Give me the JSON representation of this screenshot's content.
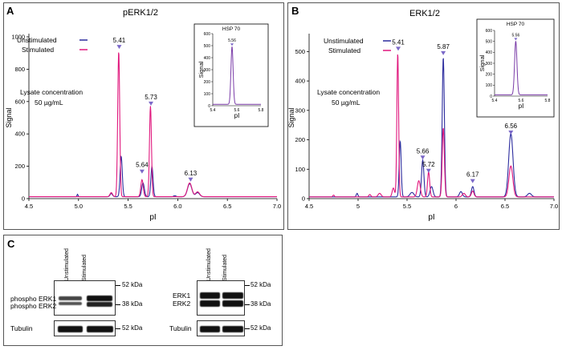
{
  "colors": {
    "unstimulated": "#2c2c9e",
    "stimulated": "#e0177d",
    "hsp": "#7a3ca8",
    "axis": "#000000"
  },
  "panelA": {
    "letter": "A",
    "title": "pERK1/2",
    "annotation": [
      "Lysate concentration",
      "50 µg/mL"
    ],
    "legend": {
      "unstimulated": "Unstimulated",
      "stimulated": "Stimulated"
    },
    "inset": {
      "title": "HSP 70",
      "peak_label": "5.56",
      "ylabel": "Signal",
      "xlabel": "pI"
    }
  },
  "panelB": {
    "letter": "B",
    "title": "ERK1/2",
    "annotation": [
      "Lysate concentration",
      "50 µg/mL"
    ],
    "legend": {
      "unstimulated": "Unstimulated",
      "stimulated": "Stimulated"
    },
    "inset": {
      "title": "HSP 70",
      "peak_label": "5.56",
      "ylabel": "Signal",
      "xlabel": "pI"
    }
  },
  "panelC": {
    "letter": "C",
    "lanes": [
      "Unstimulated",
      "Stimulated"
    ],
    "left": {
      "labels": [
        "phospho ERK1",
        "phospho ERK2"
      ],
      "loading": "Tubulin",
      "marker_top": "52 kDa",
      "marker_mid": "38 kDa",
      "marker_tub": "52 kDa"
    },
    "right": {
      "labels": [
        "ERK1",
        "ERK2"
      ],
      "loading": "Tubulin",
      "marker_top": "52 kDa",
      "marker_mid": "38 kDa",
      "marker_tub": "52 kDa"
    }
  },
  "chart_data": [
    {
      "type": "line",
      "title": "pERK1/2",
      "xlabel": "pI",
      "ylabel": "Signal",
      "xlim": [
        4.5,
        7.0
      ],
      "ylim": [
        0,
        1000
      ],
      "xticks": [
        "4.5",
        "5.0",
        "5.5",
        "6.0",
        "6.5",
        "7.0"
      ],
      "yticks": [
        "0",
        "200",
        "400",
        "600",
        "800",
        "1000"
      ],
      "legend": "top-left",
      "peak_labels": [
        {
          "x": 5.41,
          "text": "5.41",
          "y": 920
        },
        {
          "x": 5.64,
          "text": "5.64",
          "y": 150
        },
        {
          "x": 5.73,
          "text": "5.73",
          "y": 570
        },
        {
          "x": 6.13,
          "text": "6.13",
          "y": 100
        }
      ],
      "series": [
        {
          "name": "Unstimulated",
          "baseline": 12,
          "peaks": [
            [
              4.99,
              15,
              0.005
            ],
            [
              5.33,
              20,
              0.012
            ],
            [
              5.43,
              250,
              0.011
            ],
            [
              5.65,
              85,
              0.013
            ],
            [
              5.74,
              185,
              0.011
            ],
            [
              5.97,
              6,
              0.012
            ],
            [
              6.12,
              80,
              0.022
            ],
            [
              6.2,
              25,
              0.02
            ]
          ]
        },
        {
          "name": "Stimulated",
          "baseline": 12,
          "peaks": [
            [
              5.33,
              25,
              0.013
            ],
            [
              5.405,
              900,
              0.01
            ],
            [
              5.64,
              105,
              0.012
            ],
            [
              5.725,
              560,
              0.01
            ],
            [
              6.12,
              85,
              0.022
            ],
            [
              6.2,
              30,
              0.02
            ]
          ]
        }
      ],
      "inset": {
        "title": "HSP 70",
        "xlim": [
          5.4,
          5.8
        ],
        "ylim": [
          0,
          600
        ],
        "xticks": [
          "5.4",
          "5.6",
          "5.8"
        ],
        "yticks": [
          "0",
          "100",
          "200",
          "300",
          "400",
          "500",
          "600"
        ],
        "peak": {
          "x": 5.56,
          "y": 480
        }
      }
    },
    {
      "type": "line",
      "title": "ERK1/2",
      "xlabel": "pI",
      "ylabel": "Signal",
      "xlim": [
        4.5,
        7.0
      ],
      "ylim": [
        0,
        550
      ],
      "xticks": [
        "4.5",
        "5",
        "5.5",
        "6",
        "6.5",
        "7.0"
      ],
      "yticks": [
        "0",
        "100",
        "200",
        "300",
        "400",
        "500"
      ],
      "legend": "top-left",
      "peak_labels": [
        {
          "x": 5.41,
          "text": "5.41",
          "y": 500
        },
        {
          "x": 5.66,
          "text": "5.66",
          "y": 130
        },
        {
          "x": 5.72,
          "text": "5.72",
          "y": 85
        },
        {
          "x": 5.87,
          "text": "5.87",
          "y": 485
        },
        {
          "x": 6.17,
          "text": "6.17",
          "y": 50
        },
        {
          "x": 6.56,
          "text": "6.56",
          "y": 215
        }
      ],
      "series": [
        {
          "name": "Unstimulated",
          "baseline": 6,
          "peaks": [
            [
              4.99,
              12,
              0.008
            ],
            [
              5.43,
              190,
              0.01
            ],
            [
              5.55,
              15,
              0.02
            ],
            [
              5.66,
              125,
              0.012
            ],
            [
              5.75,
              35,
              0.015
            ],
            [
              5.87,
              475,
              0.011
            ],
            [
              6.05,
              18,
              0.015
            ],
            [
              6.17,
              35,
              0.013
            ],
            [
              6.56,
              215,
              0.022
            ],
            [
              6.75,
              12,
              0.02
            ]
          ]
        },
        {
          "name": "Stimulated",
          "baseline": 6,
          "peaks": [
            [
              4.75,
              6,
              0.008
            ],
            [
              5.12,
              8,
              0.01
            ],
            [
              5.22,
              12,
              0.015
            ],
            [
              5.36,
              30,
              0.012
            ],
            [
              5.405,
              490,
              0.009
            ],
            [
              5.62,
              55,
              0.015
            ],
            [
              5.72,
              85,
              0.011
            ],
            [
              5.87,
              235,
              0.011
            ],
            [
              6.08,
              12,
              0.015
            ],
            [
              6.17,
              20,
              0.013
            ],
            [
              6.56,
              105,
              0.02
            ]
          ]
        }
      ],
      "inset": {
        "title": "HSP 70",
        "xlim": [
          5.4,
          5.8
        ],
        "ylim": [
          0,
          600
        ],
        "xticks": [
          "5.4",
          "5.6",
          "5.8"
        ],
        "yticks": [
          "0",
          "100",
          "200",
          "300",
          "400",
          "500",
          "600"
        ],
        "peak": {
          "x": 5.56,
          "y": 490
        }
      }
    }
  ]
}
